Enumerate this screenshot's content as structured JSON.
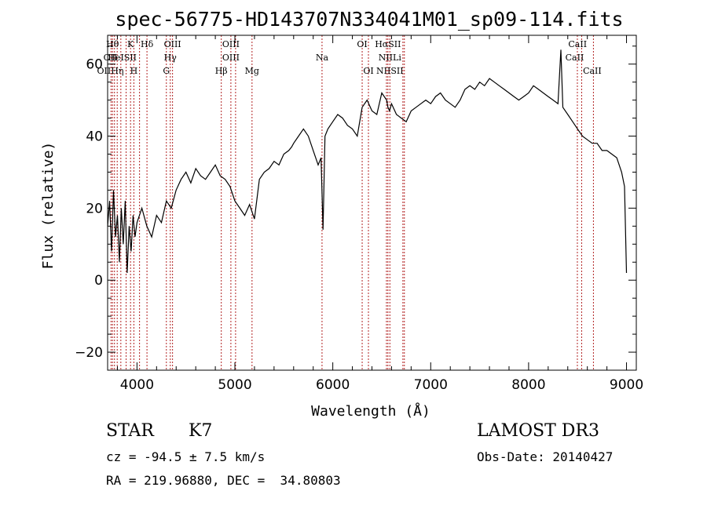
{
  "chart_data": {
    "type": "line",
    "title": "spec-56775-HD143707N334041M01_sp09-114.fits",
    "xlabel": "Wavelength (Å)",
    "ylabel": "Flux (relative)",
    "xlim": [
      3700,
      9100
    ],
    "ylim": [
      -25,
      68
    ],
    "xticks": [
      4000,
      5000,
      6000,
      7000,
      8000,
      9000
    ],
    "yticks": [
      -20,
      0,
      20,
      40,
      60
    ],
    "grid": false,
    "series": [
      {
        "x": [
          3700,
          3720,
          3740,
          3760,
          3780,
          3800,
          3820,
          3840,
          3860,
          3880,
          3900,
          3920,
          3940,
          3960,
          3980,
          4000,
          4050,
          4100,
          4150,
          4200,
          4250,
          4300,
          4350,
          4400,
          4450,
          4500,
          4550,
          4600,
          4650,
          4700,
          4750,
          4800,
          4850,
          4900,
          4950,
          5000,
          5050,
          5100,
          5150,
          5200,
          5250,
          5300,
          5350,
          5400,
          5450,
          5500,
          5550,
          5580,
          5600,
          5650,
          5700,
          5750,
          5800,
          5850,
          5880,
          5900,
          5920,
          5950,
          6000,
          6050,
          6100,
          6150,
          6200,
          6250,
          6300,
          6350,
          6400,
          6450,
          6500,
          6550,
          6563,
          6580,
          6600,
          6650,
          6700,
          6750,
          6800,
          6850,
          6900,
          6950,
          7000,
          7050,
          7100,
          7150,
          7200,
          7250,
          7300,
          7350,
          7400,
          7450,
          7500,
          7550,
          7600,
          7650,
          7700,
          7750,
          7800,
          7850,
          7900,
          7950,
          8000,
          8050,
          8100,
          8150,
          8200,
          8250,
          8300,
          8330,
          8350,
          8400,
          8450,
          8500,
          8550,
          8600,
          8650,
          8700,
          8750,
          8800,
          8850,
          8900,
          8950,
          8980,
          9000
        ],
        "y": [
          15,
          22,
          8,
          25,
          12,
          18,
          5,
          20,
          10,
          22,
          2,
          15,
          8,
          18,
          12,
          16,
          20,
          15,
          12,
          18,
          16,
          22,
          20,
          25,
          28,
          30,
          27,
          31,
          29,
          28,
          30,
          32,
          29,
          28,
          26,
          22,
          20,
          18,
          21,
          17,
          28,
          30,
          31,
          33,
          32,
          35,
          36,
          37,
          38,
          40,
          42,
          40,
          36,
          32,
          34,
          14,
          40,
          42,
          44,
          46,
          45,
          43,
          42,
          40,
          48,
          50,
          47,
          46,
          52,
          50,
          48,
          47,
          49,
          46,
          45,
          44,
          47,
          48,
          49,
          50,
          49,
          51,
          52,
          50,
          49,
          48,
          50,
          53,
          54,
          53,
          55,
          54,
          56,
          55,
          54,
          53,
          52,
          51,
          50,
          51,
          52,
          54,
          53,
          52,
          51,
          50,
          49,
          64,
          48,
          46,
          44,
          42,
          40,
          39,
          38,
          38,
          36,
          36,
          35,
          34,
          30,
          26,
          2
        ],
        "color": "#000000"
      }
    ],
    "lines": {
      "x": [
        3735,
        3750,
        3770,
        3798,
        3835,
        3889,
        3934,
        3968,
        4026,
        4102,
        4300,
        4340,
        4363,
        4861,
        4959,
        5007,
        5175,
        5890,
        6300,
        6364,
        6548,
        6563,
        6583,
        6716,
        6731,
        8498,
        8542,
        8662
      ],
      "labels": [
        {
          "text": "Hθ",
          "x": 3750,
          "row": 0
        },
        {
          "text": "OII",
          "x": 3728,
          "row": 1
        },
        {
          "text": "OIIHη",
          "x": 3728,
          "row": 2
        },
        {
          "text": "K",
          "x": 3934,
          "row": 0
        },
        {
          "text": "HeISII",
          "x": 3850,
          "row": 1
        },
        {
          "text": "H",
          "x": 3968,
          "row": 2
        },
        {
          "text": "Hδ",
          "x": 4102,
          "row": 0
        },
        {
          "text": "OIII",
          "x": 4363,
          "row": 0
        },
        {
          "text": "Hγ",
          "x": 4340,
          "row": 1
        },
        {
          "text": "G",
          "x": 4300,
          "row": 2
        },
        {
          "text": "OIII",
          "x": 4959,
          "row": 0
        },
        {
          "text": "OIII",
          "x": 4959,
          "row": 1
        },
        {
          "text": "Hβ",
          "x": 4861,
          "row": 2
        },
        {
          "text": "Mg",
          "x": 5175,
          "row": 2
        },
        {
          "text": "Na",
          "x": 5890,
          "row": 1
        },
        {
          "text": "OI",
          "x": 6300,
          "row": 0
        },
        {
          "text": "OI",
          "x": 6364,
          "row": 2
        },
        {
          "text": "HαSII",
          "x": 6563,
          "row": 0
        },
        {
          "text": "NIILi",
          "x": 6583,
          "row": 1
        },
        {
          "text": "NIISII",
          "x": 6583,
          "row": 2
        },
        {
          "text": "CaII",
          "x": 8500,
          "row": 0
        },
        {
          "text": "CaII",
          "x": 8470,
          "row": 1
        },
        {
          "text": "CaII",
          "x": 8650,
          "row": 2
        }
      ]
    }
  },
  "info": {
    "object_class": "STAR",
    "subclass": "K7",
    "survey": "LAMOST DR3",
    "redshift": "cz = -94.5 ± 7.5 km/s",
    "obs_date": "Obs-Date: 20140427",
    "coords": "RA = 219.96880, DEC =  34.80803"
  }
}
